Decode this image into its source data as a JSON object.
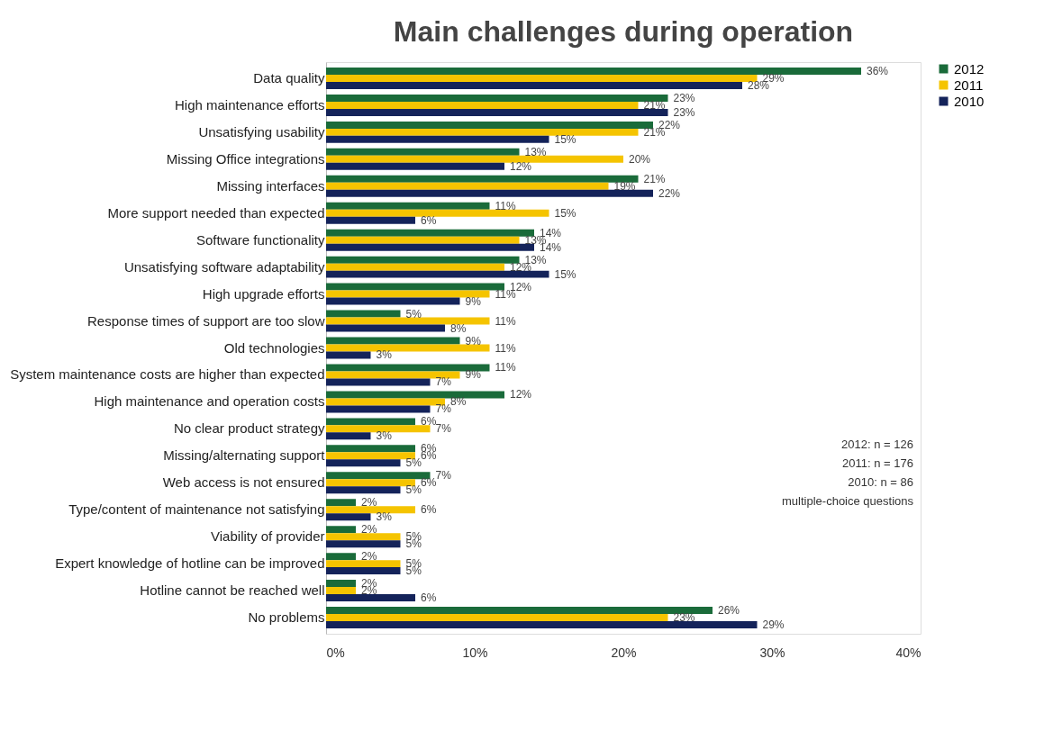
{
  "chart_data": {
    "type": "bar",
    "orientation": "horizontal",
    "title": "Main challenges during operation",
    "categories": [
      "Data quality",
      "High maintenance efforts",
      "Unsatisfying usability",
      "Missing Office integrations",
      "Missing interfaces",
      "More support needed than expected",
      "Software functionality",
      "Unsatisfying software adaptability",
      "High upgrade efforts",
      "Response times of support are too slow",
      "Old technologies",
      "System maintenance costs are higher than expected",
      "High maintenance and operation costs",
      "No clear product strategy",
      "Missing/alternating support",
      "Web access is not ensured",
      "Type/content of maintenance not satisfying",
      "Viability of provider",
      "Expert knowledge of hotline can be improved",
      "Hotline cannot be reached well",
      "No problems"
    ],
    "series": [
      {
        "name": "2012",
        "color": "#1a6b3a",
        "values": [
          36,
          23,
          22,
          13,
          21,
          11,
          14,
          13,
          12,
          5,
          9,
          11,
          12,
          6,
          6,
          7,
          2,
          2,
          2,
          2,
          26
        ],
        "value_labels": [
          "36%",
          "23%",
          "22%",
          "13%",
          "21%",
          "11%",
          "14%",
          "13%",
          "12%",
          "5%",
          "9%",
          "11%",
          "12%",
          "6%",
          "6%",
          "7%",
          "2%",
          "2%",
          "2%",
          "2%",
          "26%"
        ]
      },
      {
        "name": "2011",
        "color": "#f5c400",
        "values": [
          29,
          21,
          21,
          20,
          19,
          15,
          13,
          12,
          11,
          11,
          11,
          9,
          8,
          7,
          6,
          6,
          6,
          5,
          5,
          2,
          23
        ],
        "value_labels": [
          "29%",
          "21%",
          "21%",
          "20%",
          "19%",
          "15%",
          "13%",
          "12%",
          "11%",
          "11%",
          "11%",
          "9%",
          "8%",
          "7%",
          "6%",
          "6%",
          "6%",
          "5%",
          "5%",
          "2%",
          "23%"
        ]
      },
      {
        "name": "2010",
        "color": "#14235a",
        "values": [
          28,
          23,
          15,
          12,
          22,
          6,
          14,
          15,
          9,
          8,
          3,
          7,
          7,
          3,
          5,
          5,
          3,
          5,
          5,
          6,
          29
        ],
        "value_labels": [
          "28%",
          "23%",
          "15%",
          "12%",
          "22%",
          "6%",
          "14%",
          "15%",
          "9%",
          "8%",
          "3%",
          "7%",
          "7%",
          "3%",
          "5%",
          "5%",
          "3%",
          "5%",
          "5%",
          "6%",
          "29%"
        ]
      }
    ],
    "xlim": [
      0,
      40
    ],
    "xticks": [
      {
        "value": 0,
        "label": "0%"
      },
      {
        "value": 10,
        "label": "10%"
      },
      {
        "value": 20,
        "label": "20%"
      },
      {
        "value": 30,
        "label": "30%"
      },
      {
        "value": 40,
        "label": "40%"
      }
    ],
    "grid": false,
    "legend": "right",
    "annotations": [
      "2012: n = 126",
      "2011: n = 176",
      "2010: n = 86",
      "multiple-choice questions"
    ]
  }
}
